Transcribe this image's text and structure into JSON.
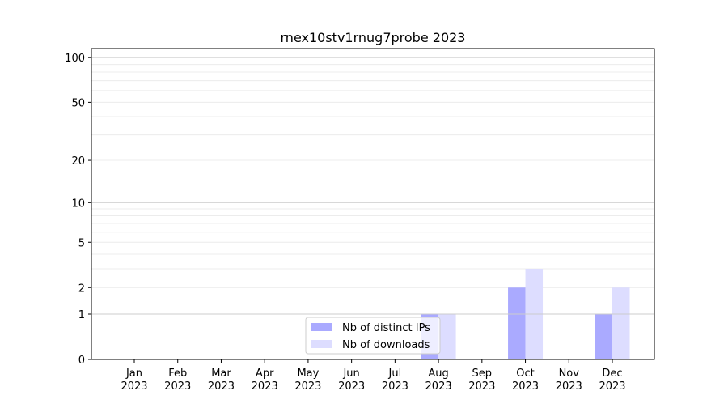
{
  "chart_data": {
    "type": "bar",
    "title": "rnex10stv1rnug7probe 2023",
    "xlabel": "",
    "ylabel": "",
    "yscale": "log(1+y)",
    "ylim": [
      0,
      115
    ],
    "yticks": [
      0,
      1,
      2,
      5,
      10,
      20,
      50,
      100
    ],
    "grid": true,
    "legend_position": "lower-center",
    "categories": [
      "Jan\n2023",
      "Feb\n2023",
      "Mar\n2023",
      "Apr\n2023",
      "May\n2023",
      "Jun\n2023",
      "Jul\n2023",
      "Aug\n2023",
      "Sep\n2023",
      "Oct\n2023",
      "Nov\n2023",
      "Dec\n2023"
    ],
    "series": [
      {
        "name": "Nb of distinct IPs",
        "color": "#aaaaff",
        "values": [
          0,
          0,
          0,
          0,
          0,
          0,
          0,
          1,
          0,
          2,
          0,
          1
        ]
      },
      {
        "name": "Nb of downloads",
        "color": "#ddddff",
        "values": [
          0,
          0,
          0,
          0,
          0,
          0,
          0,
          1,
          0,
          3,
          0,
          2
        ]
      }
    ]
  }
}
